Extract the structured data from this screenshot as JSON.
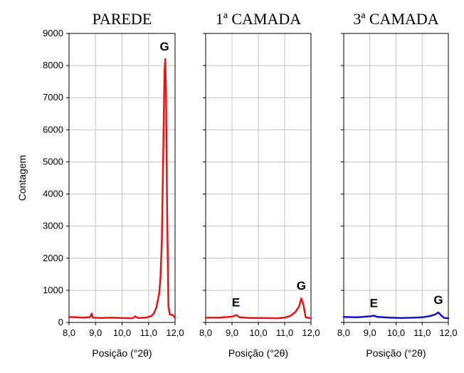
{
  "chart_data": [
    {
      "type": "line",
      "title": "PAREDE",
      "xlabel": "Posição (°2θ)",
      "ylabel": "Contagem",
      "xlim": [
        8.0,
        12.0
      ],
      "ylim": [
        0,
        9000
      ],
      "xticks": [
        "8,0",
        "9,0",
        "10,0",
        "11,0",
        "12,0"
      ],
      "yticks": [
        "0",
        "1000",
        "2000",
        "3000",
        "4000",
        "5000",
        "6000",
        "7000",
        "8000",
        "9000"
      ],
      "grid": true,
      "color": "#ee1111",
      "series": [
        {
          "x": [
            8.0,
            8.3,
            8.6,
            8.8,
            8.85,
            8.9,
            9.2,
            9.6,
            10.0,
            10.4,
            10.5,
            10.6,
            10.9,
            11.1,
            11.2,
            11.3,
            11.4,
            11.45,
            11.5,
            11.55,
            11.6,
            11.63,
            11.66,
            11.7,
            11.75,
            11.8,
            11.9,
            12.0
          ],
          "y": [
            170,
            160,
            150,
            170,
            280,
            150,
            140,
            150,
            140,
            130,
            190,
            140,
            150,
            200,
            280,
            480,
            900,
            1400,
            2500,
            5000,
            7800,
            8200,
            7200,
            3500,
            500,
            250,
            240,
            150
          ]
        }
      ],
      "annotations": [
        {
          "text": "G",
          "x": 11.6,
          "y": 8200
        }
      ]
    },
    {
      "type": "line",
      "title": "1ª CAMADA",
      "xlabel": "Posição (°2θ)",
      "xlim": [
        8.0,
        12.0
      ],
      "ylim": [
        0,
        9000
      ],
      "xticks": [
        "8,0",
        "9,0",
        "10,0",
        "11,0",
        "12,0"
      ],
      "grid": true,
      "color": "#ee1111",
      "series": [
        {
          "x": [
            8.0,
            8.5,
            9.0,
            9.15,
            9.3,
            9.7,
            10.2,
            10.7,
            11.0,
            11.2,
            11.4,
            11.55,
            11.63,
            11.7,
            11.8,
            12.0
          ],
          "y": [
            150,
            150,
            180,
            230,
            160,
            140,
            140,
            130,
            150,
            200,
            320,
            500,
            750,
            600,
            160,
            130
          ]
        }
      ],
      "annotations": [
        {
          "text": "E",
          "x": 9.15,
          "y": 230
        },
        {
          "text": "G",
          "x": 11.63,
          "y": 750
        }
      ]
    },
    {
      "type": "line",
      "title": "3ª CAMADA",
      "xlabel": "Posição (°2θ)",
      "xlim": [
        8.0,
        12.0
      ],
      "ylim": [
        0,
        9000
      ],
      "xticks": [
        "8,0",
        "9,0",
        "10,0",
        "11,0",
        "12,0"
      ],
      "grid": true,
      "color": "#1111cc",
      "series": [
        {
          "x": [
            8.0,
            8.5,
            9.0,
            9.15,
            9.3,
            9.8,
            10.2,
            10.7,
            11.0,
            11.3,
            11.5,
            11.62,
            11.75,
            11.85,
            12.0
          ],
          "y": [
            170,
            160,
            190,
            210,
            170,
            150,
            140,
            150,
            160,
            200,
            250,
            310,
            200,
            140,
            130
          ]
        }
      ],
      "annotations": [
        {
          "text": "E",
          "x": 9.15,
          "y": 210
        },
        {
          "text": "G",
          "x": 11.62,
          "y": 310
        }
      ]
    }
  ]
}
